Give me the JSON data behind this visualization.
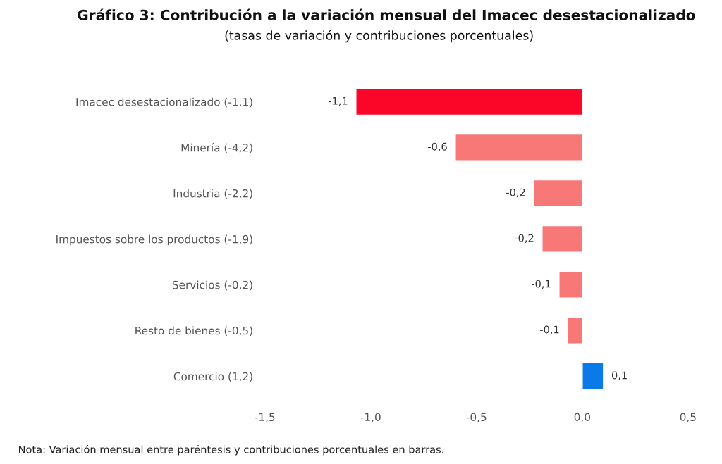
{
  "chart_data": {
    "type": "bar",
    "orientation": "horizontal",
    "title": "Gráfico 3: Contribución a la variación mensual del Imacec desestacionalizado",
    "subtitle": "(tasas de variación y contribuciones porcentuales)",
    "categories": [
      "Imacec desestacionalizado (-1,1)",
      "Minería (-4,2)",
      "Industria (-2,2)",
      "Impuestos sobre los productos (-1,9)",
      "Servicios (-0,2)",
      "Resto de bienes (-0,5)",
      "Comercio (1,2)"
    ],
    "values": [
      -1.07,
      -0.6,
      -0.23,
      -0.19,
      -0.11,
      -0.07,
      0.1
    ],
    "colors": [
      "#fb0628",
      "#f87878",
      "#f87878",
      "#f87878",
      "#f87878",
      "#f87878",
      "#0a7ae6"
    ],
    "value_labels": [
      "-1,1",
      "-0,6",
      "-0,2",
      "-0,2",
      "-0,1",
      "-0,1",
      "0,1"
    ],
    "xlim": [
      -1.5,
      0.5
    ],
    "xticks": [
      {
        "value": -1.5,
        "label": "-1,5"
      },
      {
        "value": -1.0,
        "label": "-1,0"
      },
      {
        "value": -0.5,
        "label": "-0,5"
      },
      {
        "value": 0.0,
        "label": "0,0"
      },
      {
        "value": 0.5,
        "label": "0,5"
      }
    ],
    "grid": false,
    "legend": false,
    "annotations": [
      "Nota: Variación mensual entre paréntesis y contribuciones porcentuales en barras."
    ]
  }
}
